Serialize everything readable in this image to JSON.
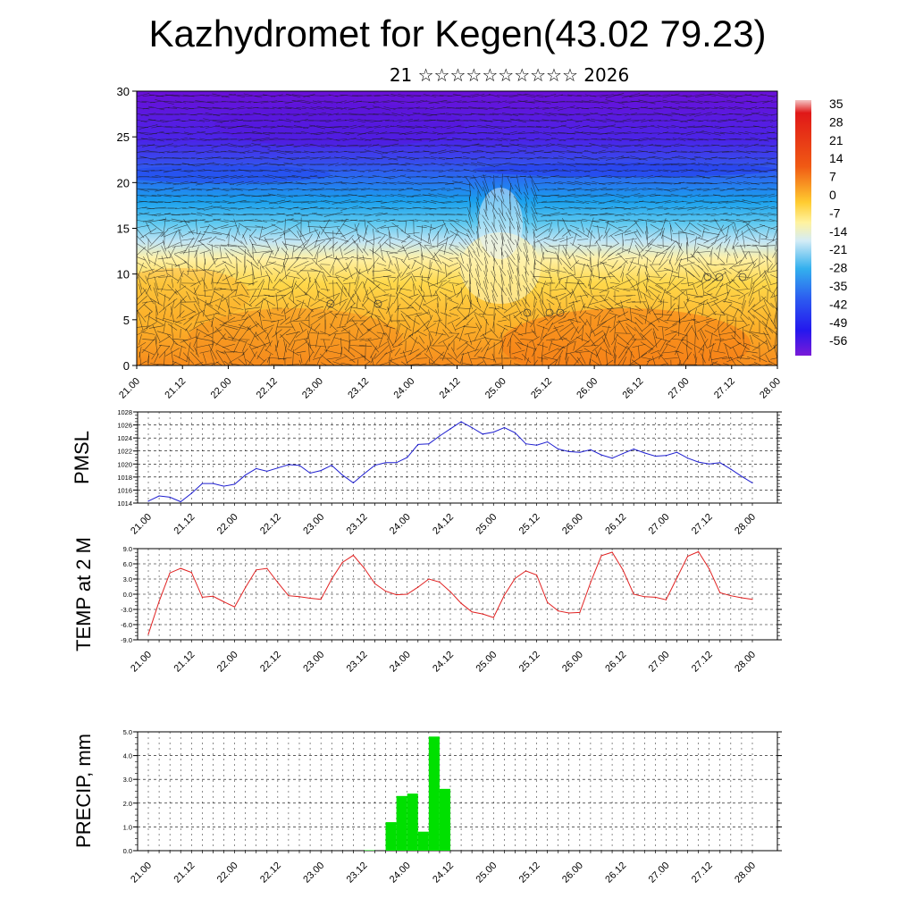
{
  "title": "Kazhydromet for Kegen(43.02 79.23)",
  "subtitle": "21 ☆☆☆☆☆☆☆☆☆☆ 2026",
  "time_labels": [
    "21.00",
    "21.12",
    "22.00",
    "22.12",
    "23.00",
    "23.12",
    "24.00",
    "24.12",
    "25.00",
    "25.12",
    "26.00",
    "26.12",
    "27.00",
    "27.12",
    "28.00"
  ],
  "colors": {
    "pressure_line": "#1f1fd0",
    "temperature_line": "#e02020",
    "precip_bar": "#00e000",
    "cross_section_palette": [
      "#6a0fd8",
      "#4a24e8",
      "#2c62f0",
      "#1aa0ee",
      "#5cc8f0",
      "#c4e6f4",
      "#fff1a6",
      "#ffd84a",
      "#fcb22a",
      "#f78b1c"
    ]
  },
  "chart_data": [
    {
      "type": "heatmap",
      "name": "cross-section",
      "ylim": [
        0,
        30
      ],
      "yticks": [
        0,
        5,
        10,
        15,
        20,
        25,
        30
      ],
      "colorbar_labels": [
        "35",
        "28",
        "21",
        "14",
        "7",
        "0",
        "-7",
        "-14",
        "-21",
        "-28",
        "-35",
        "-42",
        "-49",
        "-56"
      ],
      "vectors": true
    },
    {
      "type": "line",
      "ylabel": "PMSL",
      "ylim": [
        1014,
        1028
      ],
      "yticks": [
        "1014",
        "1016",
        "1018",
        "1020",
        "1022",
        "1024",
        "1026",
        "1028"
      ],
      "x": [
        0,
        1,
        2,
        3,
        4,
        5,
        6,
        7,
        8,
        9,
        10,
        11,
        12,
        13,
        14,
        15,
        16,
        17,
        18,
        19,
        20,
        21,
        22,
        23,
        24,
        25,
        26,
        27,
        28,
        29,
        30,
        31,
        32,
        33,
        34,
        35,
        36,
        37,
        38,
        39,
        40,
        41,
        42,
        43,
        44,
        45,
        46,
        47,
        48,
        49,
        50,
        51,
        52,
        53,
        54,
        55,
        56
      ],
      "values": [
        1014.3,
        1015.1,
        1014.9,
        1014.2,
        1015.5,
        1017.0,
        1017.0,
        1016.6,
        1016.9,
        1018.3,
        1019.3,
        1018.9,
        1019.4,
        1019.9,
        1019.8,
        1018.6,
        1019.0,
        1019.8,
        1018.3,
        1017.1,
        1018.5,
        1019.8,
        1020.2,
        1020.2,
        1021.0,
        1023.0,
        1023.1,
        1024.3,
        1025.4,
        1026.5,
        1025.6,
        1024.6,
        1024.9,
        1025.6,
        1024.8,
        1023.1,
        1022.9,
        1023.4,
        1022.3,
        1021.9,
        1021.8,
        1022.2,
        1021.4,
        1020.9,
        1021.6,
        1022.3,
        1021.7,
        1021.2,
        1021.3,
        1021.8,
        1020.9,
        1020.3,
        1020.0,
        1020.2,
        1019.2,
        1018.1,
        1017.1
      ]
    },
    {
      "type": "line",
      "ylabel": "TEMP at 2 M",
      "ylim": [
        -9,
        9
      ],
      "yticks": [
        "-9.0",
        "-6.0",
        "-3.0",
        "0.0",
        "3.0",
        "6.0",
        "9.0"
      ],
      "x": [
        0,
        1,
        2,
        3,
        4,
        5,
        6,
        7,
        8,
        9,
        10,
        11,
        12,
        13,
        14,
        15,
        16,
        17,
        18,
        19,
        20,
        21,
        22,
        23,
        24,
        25,
        26,
        27,
        28,
        29,
        30,
        31,
        32,
        33,
        34,
        35,
        36,
        37,
        38,
        39,
        40,
        41,
        42,
        43,
        44,
        45,
        46,
        47,
        48,
        49,
        50,
        51,
        52,
        53,
        54,
        55,
        56
      ],
      "values": [
        -7.9,
        -1.4,
        4.2,
        5.1,
        4.3,
        -0.6,
        -0.4,
        -1.5,
        -2.5,
        1.3,
        4.8,
        5.1,
        2.3,
        -0.3,
        -0.5,
        -0.8,
        -1.0,
        3.0,
        6.3,
        7.7,
        5.2,
        2.1,
        0.6,
        -0.1,
        0.0,
        1.4,
        3.0,
        2.4,
        0.5,
        -1.8,
        -3.5,
        -3.9,
        -4.6,
        -0.2,
        3.1,
        4.6,
        3.8,
        -1.6,
        -3.3,
        -3.7,
        -3.6,
        2.3,
        7.6,
        8.3,
        4.8,
        0.0,
        -0.5,
        -0.6,
        -1.1,
        3.2,
        7.5,
        8.4,
        5.0,
        0.3,
        -0.3,
        -0.7,
        -1.0
      ]
    },
    {
      "type": "bar",
      "ylabel": "PRECIP, mm",
      "ylim": [
        0,
        5
      ],
      "yticks": [
        "0.0",
        "1.0",
        "2.0",
        "3.0",
        "4.0",
        "5.0"
      ],
      "x": [
        20,
        21,
        22,
        23,
        24,
        25,
        26,
        27
      ],
      "values": [
        0.02,
        0.0,
        1.2,
        2.3,
        2.4,
        0.8,
        4.8,
        2.6
      ]
    }
  ]
}
